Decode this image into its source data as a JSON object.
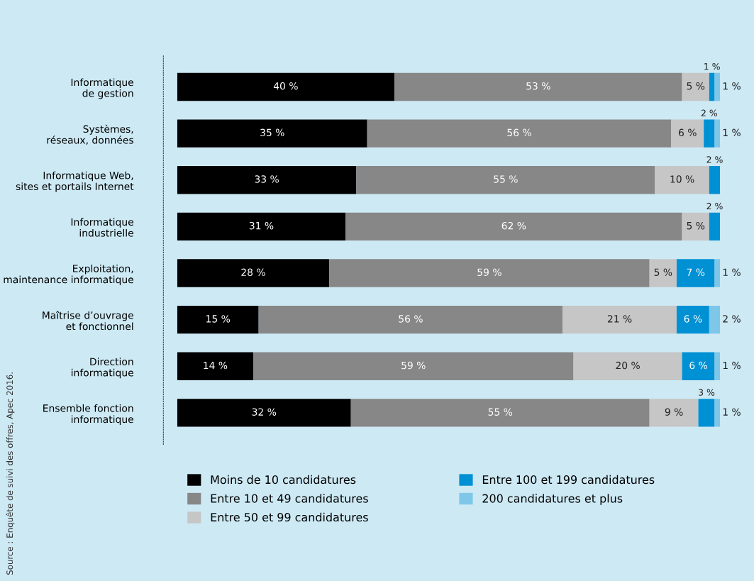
{
  "chart_data": {
    "type": "bar",
    "orientation": "horizontal",
    "stacked": true,
    "legend": "bottom",
    "grid": false,
    "categories": [
      "Informatique\nde gestion",
      "Systèmes,\nréseaux, données",
      "Informatique Web,\nsites et portails Internet",
      "Informatique\nindustrielle",
      "Exploitation,\nmaintenance informatique",
      "Maîtrise d’ouvrage\net fonctionnel",
      "Direction\ninformatique",
      "Ensemble fonction\ninformatique"
    ],
    "series": [
      {
        "name": "Moins de 10 candidatures",
        "color": "#000000",
        "values": [
          40,
          35,
          33,
          31,
          28,
          15,
          14,
          32
        ],
        "value_labels": [
          "40 %",
          "35 %",
          "33 %",
          "31 %",
          "28 %",
          "15 %",
          "14 %",
          "32 %"
        ]
      },
      {
        "name": "Entre 10 et 49 candidatures",
        "color": "#878787",
        "values": [
          53,
          56,
          55,
          62,
          59,
          56,
          59,
          55
        ],
        "value_labels": [
          "53 %",
          "56 %",
          "55 %",
          "62 %",
          "59 %",
          "56 %",
          "59 %",
          "55 %"
        ]
      },
      {
        "name": "Entre 50 et 99 candidatures",
        "color": "#c6c6c6",
        "values": [
          5,
          6,
          10,
          5,
          5,
          21,
          20,
          9
        ],
        "value_labels": [
          "5 %",
          "6 %",
          "10 %",
          "5 %",
          "5 %",
          "21 %",
          "20 %",
          "9 %"
        ]
      },
      {
        "name": "Entre 100 et 199 candidatures",
        "color": "#0090d4",
        "values": [
          1,
          2,
          2,
          2,
          7,
          6,
          6,
          3
        ],
        "value_labels": [
          "1 %",
          "2 %",
          "2 %",
          "2 %",
          "7 %",
          "6 %",
          "6 %",
          "3 %"
        ]
      },
      {
        "name": "200 candidatures et plus",
        "color": "#7fc7e8",
        "values": [
          1,
          1,
          null,
          null,
          1,
          2,
          1,
          1
        ],
        "value_labels": [
          "1 %",
          "1 %",
          null,
          null,
          "1 %",
          "2 %",
          "1 %",
          "1 %"
        ]
      }
    ],
    "annotations": [
      "Source : Enquête de suivi des offres, Apec 2016."
    ]
  }
}
